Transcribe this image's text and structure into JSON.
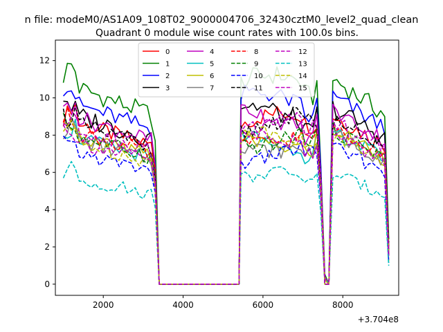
{
  "chart_data": {
    "type": "line",
    "suptitle": "n file: modeM0/AS1A09_108T02_9000004706_32430cztM0_level2_quad_clean",
    "title": "Quadrant 0 module wise count rates with 100.0s bins.",
    "xlabel": "",
    "ylabel": "",
    "x_offset_label": "+3.704e8",
    "xlim": [
      800,
      9400
    ],
    "ylim": [
      -0.6,
      13.1
    ],
    "xticks": [
      {
        "value": 2000,
        "label": "2000"
      },
      {
        "value": 4000,
        "label": "4000"
      },
      {
        "value": 6000,
        "label": "6000"
      },
      {
        "value": 8000,
        "label": "8000"
      }
    ],
    "yticks": [
      {
        "value": 0,
        "label": "0"
      },
      {
        "value": 2,
        "label": "2"
      },
      {
        "value": 4,
        "label": "4"
      },
      {
        "value": 6,
        "label": "6"
      },
      {
        "value": 8,
        "label": "8"
      },
      {
        "value": 10,
        "label": "10"
      },
      {
        "value": 12,
        "label": "12"
      }
    ],
    "grid": false,
    "legend": {
      "placement": "upper-center",
      "columns": 4
    },
    "segments": [
      {
        "start": 1000,
        "step": 100,
        "count": 24
      },
      {
        "start": 3400,
        "step": 100,
        "count": 21
      },
      {
        "start": 5450,
        "step": 100,
        "count": 19
      },
      {
        "start": 7350,
        "step": 100,
        "count": 4
      },
      {
        "start": 7750,
        "step": 100,
        "count": 15
      }
    ],
    "series": [
      {
        "name": "0",
        "color": "#ff0000",
        "dash": "solid",
        "level": 8.6,
        "amp": 1.05
      },
      {
        "name": "1",
        "color": "#008000",
        "dash": "solid",
        "level": 10.5,
        "amp": 1.2
      },
      {
        "name": "2",
        "color": "#0000ff",
        "dash": "solid",
        "level": 9.6,
        "amp": 1.1
      },
      {
        "name": "3",
        "color": "#000000",
        "dash": "solid",
        "level": 9.0,
        "amp": 1.25
      },
      {
        "name": "4",
        "color": "#bf00bf",
        "dash": "solid",
        "level": 8.9,
        "amp": 1.0
      },
      {
        "name": "5",
        "color": "#00bfbf",
        "dash": "solid",
        "level": 7.8,
        "amp": 0.9
      },
      {
        "name": "6",
        "color": "#bfbf00",
        "dash": "solid",
        "level": 7.9,
        "amp": 1.0
      },
      {
        "name": "7",
        "color": "#808080",
        "dash": "solid",
        "level": 7.7,
        "amp": 0.95
      },
      {
        "name": "8",
        "color": "#ff0000",
        "dash": "dashed",
        "level": 8.1,
        "amp": 1.0
      },
      {
        "name": "9",
        "color": "#008000",
        "dash": "dashed",
        "level": 7.9,
        "amp": 0.95
      },
      {
        "name": "10",
        "color": "#0000ff",
        "dash": "dashed",
        "level": 7.0,
        "amp": 0.85
      },
      {
        "name": "11",
        "color": "#000000",
        "dash": "dashed",
        "level": 8.5,
        "amp": 1.1
      },
      {
        "name": "12",
        "color": "#bf00bf",
        "dash": "dashed",
        "level": 8.3,
        "amp": 1.0
      },
      {
        "name": "13",
        "color": "#00bfbf",
        "dash": "dashed",
        "level": 5.6,
        "amp": 0.8
      },
      {
        "name": "14",
        "color": "#bfbf00",
        "dash": "dashed",
        "level": 7.6,
        "amp": 0.95
      },
      {
        "name": "15",
        "color": "#bf00bf",
        "dash": "dashed",
        "level": 7.6,
        "amp": 0.9
      }
    ]
  }
}
